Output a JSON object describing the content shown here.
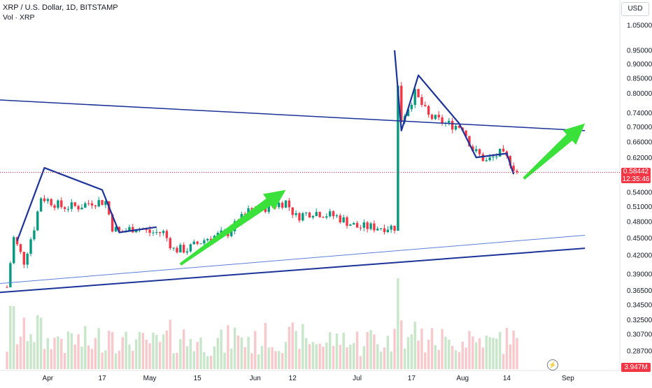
{
  "legend": {
    "symbol": "XRP / U.S. Dollar, 1D, BITSTAMP",
    "volume_label": "Vol · XRP"
  },
  "currency_button": "USD",
  "price_axis": {
    "ticks": [
      "1.05000",
      "0.95000",
      "0.90000",
      "0.85000",
      "0.80000",
      "0.74000",
      "0.70000",
      "0.66000",
      "0.62000",
      "0.54000",
      "0.51000",
      "0.48000",
      "0.45000",
      "0.42000",
      "0.39000",
      "0.36500",
      "0.34500",
      "0.32500",
      "0.30700",
      "0.28700"
    ],
    "tick_values": [
      1.05,
      0.95,
      0.9,
      0.85,
      0.8,
      0.74,
      0.7,
      0.66,
      0.62,
      0.54,
      0.51,
      0.48,
      0.45,
      0.42,
      0.39,
      0.365,
      0.345,
      0.325,
      0.307,
      0.287
    ]
  },
  "current_price": {
    "value": "0.58442",
    "countdown": "12:35:46"
  },
  "current_volume": "3.947M",
  "time_axis": {
    "labels": [
      "Apr",
      "17",
      "May",
      "15",
      "Jun",
      "12",
      "Jul",
      "17",
      "Aug",
      "14",
      "Sep"
    ]
  },
  "colors": {
    "up": "#089981",
    "down": "#f23645",
    "vol_up": "#c8e6c9",
    "vol_down": "#f8c9cc",
    "trendline": "#1c3399",
    "arrow": "#3ae13a"
  },
  "chart_data": {
    "type": "candlestick",
    "title": "XRP / U.S. Dollar, 1D, BITSTAMP",
    "y_scale": "log",
    "ylim": [
      0.28,
      1.08
    ],
    "x_range": [
      "2023-03-20",
      "2023-09-04"
    ],
    "series": [
      {
        "name": "XRP",
        "keypoints": [
          [
            "2023-03-20",
            0.37
          ],
          [
            "2023-03-22",
            0.45
          ],
          [
            "2023-03-25",
            0.41
          ],
          [
            "2023-03-28",
            0.47
          ],
          [
            "2023-03-30",
            0.53
          ],
          [
            "2023-04-02",
            0.52
          ],
          [
            "2023-04-05",
            0.51
          ],
          [
            "2023-04-10",
            0.51
          ],
          [
            "2023-04-14",
            0.52
          ],
          [
            "2023-04-18",
            0.52
          ],
          [
            "2023-04-20",
            0.47
          ],
          [
            "2023-04-22",
            0.46
          ],
          [
            "2023-04-27",
            0.47
          ],
          [
            "2023-05-01",
            0.46
          ],
          [
            "2023-05-05",
            0.46
          ],
          [
            "2023-05-08",
            0.43
          ],
          [
            "2023-05-12",
            0.43
          ],
          [
            "2023-05-18",
            0.45
          ],
          [
            "2023-05-24",
            0.46
          ],
          [
            "2023-05-30",
            0.5
          ],
          [
            "2023-06-05",
            0.51
          ],
          [
            "2023-06-10",
            0.52
          ],
          [
            "2023-06-13",
            0.49
          ],
          [
            "2023-06-18",
            0.5
          ],
          [
            "2023-06-25",
            0.49
          ],
          [
            "2023-07-01",
            0.47
          ],
          [
            "2023-07-07",
            0.47
          ],
          [
            "2023-07-12",
            0.47
          ],
          [
            "2023-07-13",
            0.82
          ],
          [
            "2023-07-14",
            0.72
          ],
          [
            "2023-07-18",
            0.8
          ],
          [
            "2023-07-22",
            0.73
          ],
          [
            "2023-07-27",
            0.71
          ],
          [
            "2023-08-01",
            0.7
          ],
          [
            "2023-08-04",
            0.64
          ],
          [
            "2023-08-08",
            0.61
          ],
          [
            "2023-08-12",
            0.63
          ],
          [
            "2023-08-15",
            0.61
          ],
          [
            "2023-08-17",
            0.58442
          ]
        ]
      }
    ],
    "xlabel": "",
    "ylabel": "",
    "grid": false
  },
  "annotations": {
    "trendlines": [
      {
        "from": [
          "2023-03-17",
          0.78
        ],
        "to": [
          "2023-09-06",
          0.69
        ]
      },
      {
        "from": [
          "2023-03-17",
          0.375
        ],
        "to": [
          "2023-09-06",
          0.455
        ]
      },
      {
        "from": [
          "2023-03-17",
          0.362
        ],
        "to": [
          "2023-09-06",
          0.432
        ]
      }
    ],
    "pattern_lines": [
      [
        [
          "2023-03-23",
          0.445
        ],
        [
          "2023-03-31",
          0.595
        ],
        [
          "2023-04-17",
          0.545
        ],
        [
          "2023-04-22",
          0.46
        ],
        [
          "2023-05-03",
          0.47
        ]
      ],
      [
        [
          "2023-07-12",
          0.95
        ],
        [
          "2023-07-14",
          0.69
        ],
        [
          "2023-07-19",
          0.86
        ],
        [
          "2023-07-31",
          0.71
        ],
        [
          "2023-08-05",
          0.62
        ],
        [
          "2023-08-14",
          0.63
        ],
        [
          "2023-08-16",
          0.58
        ]
      ]
    ],
    "arrows": [
      {
        "from": [
          "2023-05-10",
          0.405
        ],
        "to": [
          "2023-06-10",
          0.545
        ]
      },
      {
        "from": [
          "2023-08-19",
          0.57
        ],
        "to": [
          "2023-09-06",
          0.71
        ]
      }
    ]
  }
}
